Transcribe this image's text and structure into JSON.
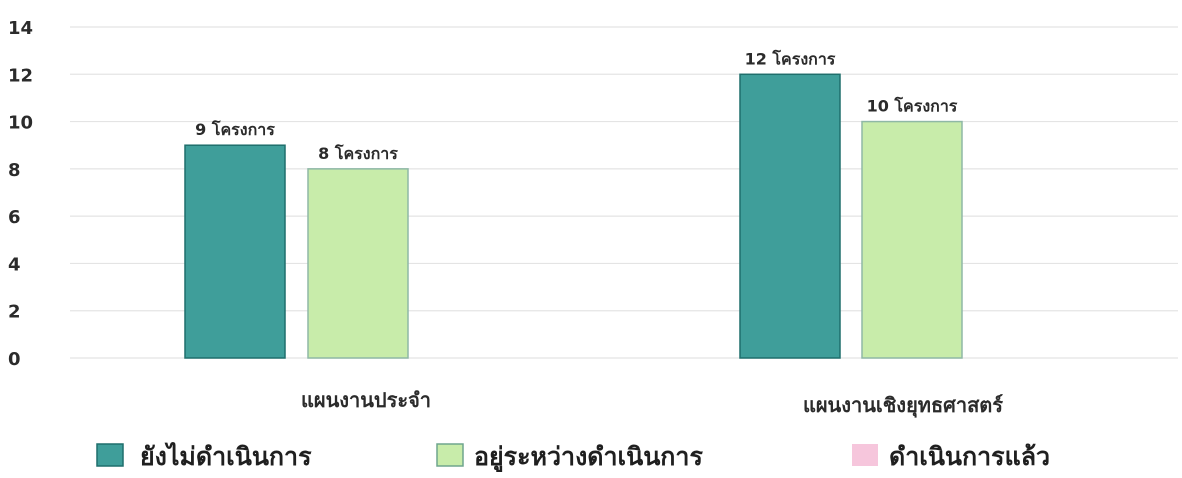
{
  "chart_data": {
    "type": "bar",
    "categories": [
      "แผนงานประจำ",
      "แผนงานเชิงยุทธศาสตร์"
    ],
    "series": [
      {
        "name": "ยังไม่ดำเนินการ",
        "values": [
          9,
          12
        ],
        "labels": [
          "9 โครงการ",
          "12 โครงการ"
        ],
        "color": "#3f9e9a"
      },
      {
        "name": "อยู่ระหว่างดำเนินการ",
        "values": [
          8,
          10
        ],
        "labels": [
          "8 โครงการ",
          "10 โครงการ"
        ],
        "color": "#c8ecaa"
      },
      {
        "name": "ดำเนินการแล้ว",
        "values": [
          0,
          0
        ],
        "labels": [
          "",
          ""
        ],
        "color": "#f6c6dc"
      }
    ],
    "yticks": [
      0,
      2,
      4,
      6,
      8,
      10,
      12,
      14
    ],
    "ylim": [
      0,
      14
    ],
    "grid": true,
    "legend_position": "bottom"
  }
}
